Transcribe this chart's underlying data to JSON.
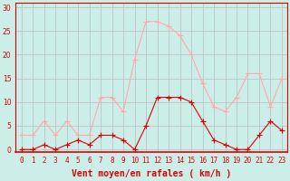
{
  "x": [
    0,
    1,
    2,
    3,
    4,
    5,
    6,
    7,
    8,
    9,
    10,
    11,
    12,
    13,
    14,
    15,
    16,
    17,
    18,
    19,
    20,
    21,
    22,
    23
  ],
  "rafales": [
    3,
    3,
    6,
    3,
    6,
    3,
    3,
    11,
    11,
    8,
    19,
    27,
    27,
    26,
    24,
    20,
    14,
    9,
    8,
    11,
    16,
    16,
    9,
    15
  ],
  "vent_moyen": [
    0,
    0,
    1,
    0,
    1,
    2,
    1,
    3,
    3,
    2,
    0,
    5,
    11,
    11,
    11,
    10,
    6,
    2,
    1,
    0,
    0,
    3,
    6,
    4
  ],
  "color_rafales": "#ffaaaa",
  "color_vent": "#dd0000",
  "bg_color": "#cceee8",
  "grid_color": "#bbbbbb",
  "xlabel": "Vent moyen/en rafales ( km/h )",
  "xlabel_color": "#dd0000",
  "ylabel_vals": [
    0,
    5,
    10,
    15,
    20,
    25,
    30
  ],
  "ylim": [
    -0.5,
    31
  ],
  "xlim": [
    -0.5,
    23.5
  ],
  "axis_color": "#dd0000",
  "tick_color": "#dd0000",
  "tick_fontsize": 5.5,
  "xlabel_fontsize": 7.0,
  "marker_vent": "+",
  "marker_rafales": "+"
}
